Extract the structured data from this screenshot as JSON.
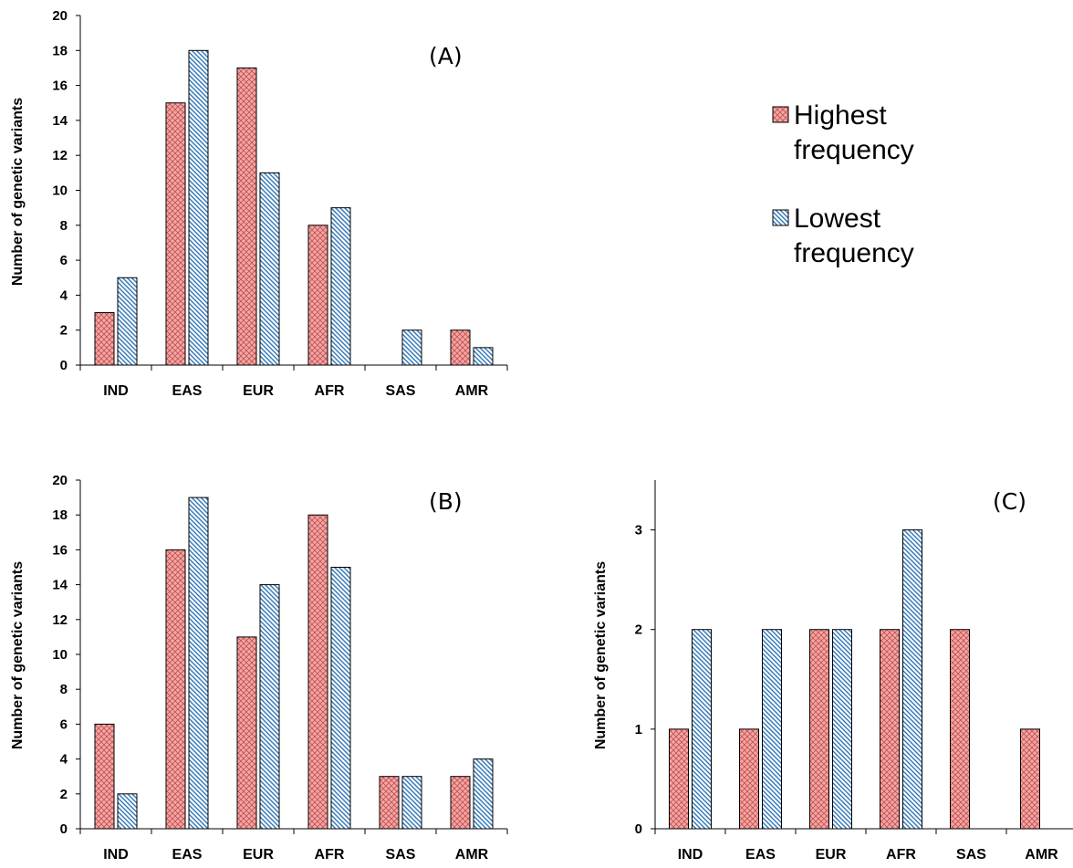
{
  "legend": {
    "items": [
      {
        "lines": [
          "Highest",
          "frequency"
        ],
        "fill": "hatch-high"
      },
      {
        "lines": [
          "Lowest",
          "frequency"
        ],
        "fill": "hatch-low"
      }
    ]
  },
  "colors": {
    "highest": "#f4a6a6",
    "lowest": "#5b9bd5"
  },
  "chart_data": [
    {
      "type": "bar",
      "panel_label": "(A)",
      "ylabel": "Number of genetic variants",
      "ylim": [
        0,
        20
      ],
      "yticks": [
        0,
        2,
        4,
        6,
        8,
        10,
        12,
        14,
        16,
        18,
        20
      ],
      "categories": [
        "IND",
        "EAS",
        "EUR",
        "AFR",
        "SAS",
        "AMR"
      ],
      "series": [
        {
          "name": "Highest frequency",
          "values": [
            3,
            15,
            17,
            8,
            0,
            2
          ]
        },
        {
          "name": "Lowest frequency",
          "values": [
            5,
            18,
            11,
            9,
            2,
            1
          ]
        }
      ]
    },
    {
      "type": "bar",
      "panel_label": "(B)",
      "ylabel": "Number of genetic variants",
      "ylim": [
        0,
        20
      ],
      "yticks": [
        0,
        2,
        4,
        6,
        8,
        10,
        12,
        14,
        16,
        18,
        20
      ],
      "categories": [
        "IND",
        "EAS",
        "EUR",
        "AFR",
        "SAS",
        "AMR"
      ],
      "series": [
        {
          "name": "Highest frequency",
          "values": [
            6,
            16,
            11,
            18,
            3,
            3
          ]
        },
        {
          "name": "Lowest frequency",
          "values": [
            2,
            19,
            14,
            15,
            3,
            4
          ]
        }
      ]
    },
    {
      "type": "bar",
      "panel_label": "(C)",
      "ylabel": "Number of genetic variants",
      "ylim": [
        0,
        3.5
      ],
      "yticks": [
        0,
        1,
        2,
        3
      ],
      "categories": [
        "IND",
        "EAS",
        "EUR",
        "AFR",
        "SAS",
        "AMR"
      ],
      "series": [
        {
          "name": "Highest frequency",
          "values": [
            1,
            1,
            2,
            2,
            2,
            1
          ]
        },
        {
          "name": "Lowest frequency",
          "values": [
            2,
            2,
            2,
            3,
            0,
            0
          ]
        }
      ]
    }
  ]
}
